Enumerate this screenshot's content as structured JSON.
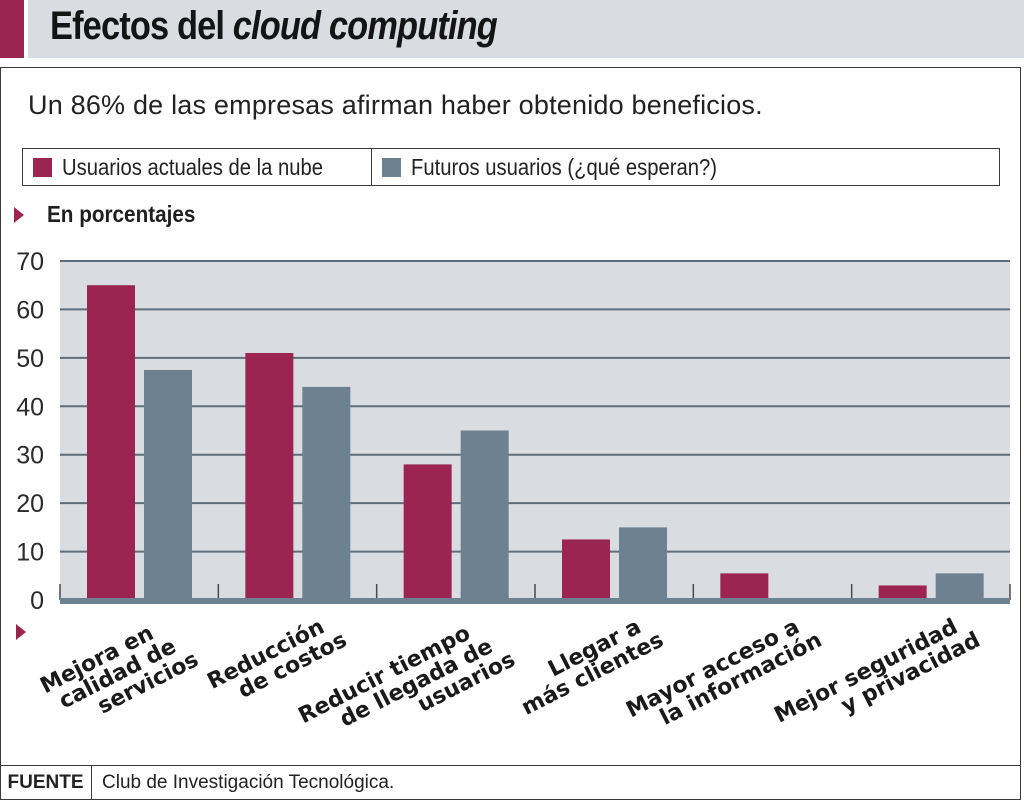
{
  "header": {
    "title_plain": "Efectos del ",
    "title_italic": "cloud computing",
    "accent_color": "#9b2550"
  },
  "subtitle": "Un 86% de las empresas afirman haber obtenido beneficios.",
  "section_label": "En porcentajes",
  "footer": {
    "label": "FUENTE",
    "text": "Club de Investigación Tecnológica."
  },
  "chart_data": {
    "type": "bar",
    "title": "Efectos del cloud computing",
    "subtitle": "Un 86% de las empresas afirman haber obtenido beneficios.",
    "ylabel": "En porcentajes",
    "xlabel": "",
    "ylim": [
      0,
      70
    ],
    "yticks": [
      0,
      10,
      20,
      30,
      40,
      50,
      60,
      70
    ],
    "grid": true,
    "legend_position": "top",
    "categories": [
      [
        "Mejora en",
        "calidad de",
        "servicios"
      ],
      [
        "Reducción",
        "de costos"
      ],
      [
        "Reducir tiempo",
        "de llegada de",
        "usuarios"
      ],
      [
        "Llegar a",
        "más clientes"
      ],
      [
        "Mayor acceso a",
        "la información"
      ],
      [
        "Mejor seguridad",
        "y privacidad"
      ]
    ],
    "series": [
      {
        "name": "Usuarios actuales de la nube",
        "color": "#9b2550",
        "values": [
          65,
          51,
          28,
          12.5,
          5.5,
          3
        ]
      },
      {
        "name": "Futuros usuarios (¿qué esperan?)",
        "color": "#6e8191",
        "values": [
          47.5,
          44,
          35,
          15,
          0,
          5.5
        ]
      }
    ],
    "plot_background": "#d9dce0",
    "gridline_color": "#5f6e7a"
  }
}
